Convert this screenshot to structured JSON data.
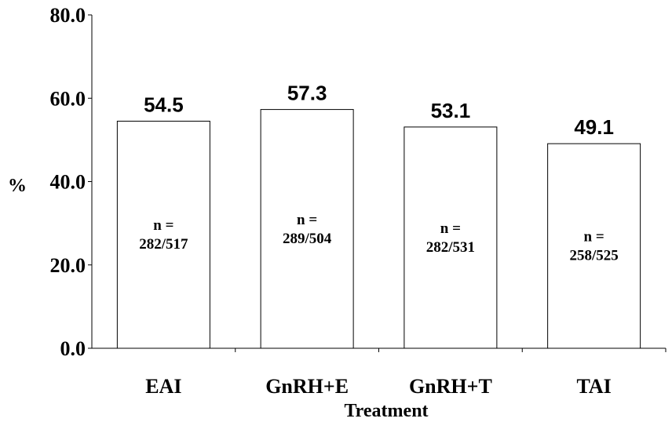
{
  "chart_data": {
    "type": "bar",
    "title": "",
    "xlabel": "Treatment",
    "ylabel": "%",
    "ylim": [
      0,
      80
    ],
    "yticks": [
      "0.0",
      "20.0",
      "40.0",
      "60.0",
      "80.0"
    ],
    "categories": [
      "EAI",
      "GnRH+E",
      "GnRH+T",
      "TAI"
    ],
    "values": [
      54.5,
      57.3,
      53.1,
      49.1
    ],
    "value_labels": [
      "54.5",
      "57.3",
      "53.1",
      "49.1"
    ],
    "n_prefix": "n =",
    "n_counts": [
      "282/517",
      "289/504",
      "282/531",
      "258/525"
    ],
    "grid": false,
    "legend": "none",
    "bar_fill": "#ffffff",
    "bar_stroke": "#000000"
  }
}
